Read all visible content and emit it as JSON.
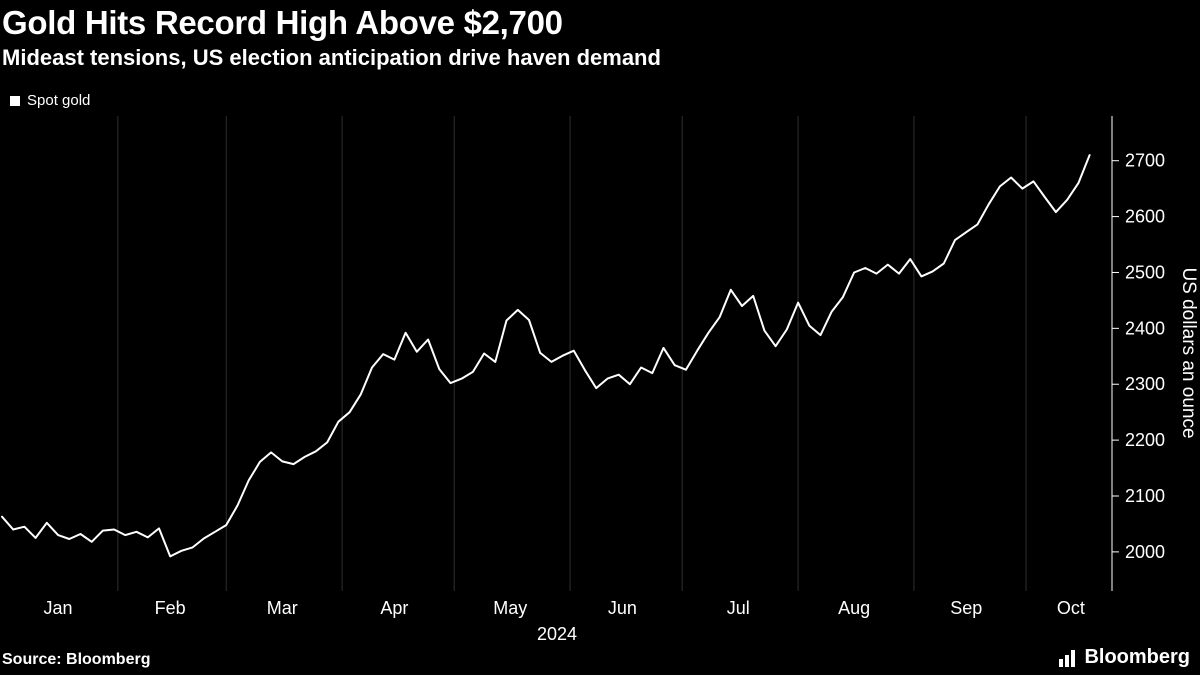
{
  "header": {
    "title": "Gold Hits Record High Above $2,700",
    "subtitle": "Mideast tensions, US election anticipation drive haven demand"
  },
  "legend": {
    "label": "Spot gold",
    "swatch_color": "#ffffff"
  },
  "footer": {
    "source": "Source: Bloomberg",
    "brand": "Bloomberg"
  },
  "colors": {
    "background": "#000000",
    "line": "#ffffff",
    "grid": "#2f2f2f",
    "axis": "#ffffff",
    "text": "#ffffff"
  },
  "chart_data": {
    "type": "line",
    "title": "Gold Hits Record High Above $2,700",
    "subtitle": "Mideast tensions, US election anticipation drive haven demand",
    "legend_position": "top-left",
    "grid": {
      "vertical": true,
      "horizontal": false
    },
    "x_axis": {
      "year_label": "2024",
      "domain_days": [
        1,
        298
      ],
      "months": [
        {
          "label": "Jan",
          "start_day": 1,
          "mid_day": 16
        },
        {
          "label": "Feb",
          "start_day": 32,
          "mid_day": 46
        },
        {
          "label": "Mar",
          "start_day": 61,
          "mid_day": 76
        },
        {
          "label": "Apr",
          "start_day": 92,
          "mid_day": 106
        },
        {
          "label": "May",
          "start_day": 122,
          "mid_day": 137
        },
        {
          "label": "Jun",
          "start_day": 153,
          "mid_day": 167
        },
        {
          "label": "Jul",
          "start_day": 183,
          "mid_day": 198
        },
        {
          "label": "Aug",
          "start_day": 214,
          "mid_day": 229
        },
        {
          "label": "Sep",
          "start_day": 245,
          "mid_day": 259
        },
        {
          "label": "Oct",
          "start_day": 275,
          "mid_day": 287
        }
      ]
    },
    "y_axis": {
      "label": "US dollars an ounce",
      "side": "right",
      "ticks": [
        2000,
        2100,
        2200,
        2300,
        2400,
        2500,
        2600,
        2700
      ],
      "domain": [
        1930,
        2780
      ]
    },
    "series": [
      {
        "name": "Spot gold",
        "unit": "US dollars an ounce",
        "x_start_day": 1,
        "x_step_days": 3,
        "values": [
          2063,
          2040,
          2045,
          2025,
          2052,
          2030,
          2023,
          2032,
          2018,
          2038,
          2040,
          2030,
          2036,
          2026,
          2042,
          1992,
          2002,
          2008,
          2024,
          2036,
          2048,
          2083,
          2128,
          2161,
          2178,
          2162,
          2157,
          2170,
          2180,
          2196,
          2233,
          2250,
          2282,
          2330,
          2354,
          2344,
          2392,
          2358,
          2380,
          2327,
          2302,
          2310,
          2322,
          2355,
          2340,
          2414,
          2433,
          2415,
          2356,
          2340,
          2351,
          2360,
          2325,
          2293,
          2310,
          2317,
          2300,
          2330,
          2320,
          2365,
          2334,
          2326,
          2360,
          2392,
          2420,
          2469,
          2440,
          2458,
          2396,
          2368,
          2398,
          2446,
          2405,
          2388,
          2430,
          2456,
          2500,
          2508,
          2498,
          2514,
          2498,
          2524,
          2493,
          2502,
          2516,
          2558,
          2572,
          2586,
          2622,
          2654,
          2670,
          2650,
          2663,
          2635,
          2608,
          2630,
          2660,
          2710
        ]
      }
    ]
  }
}
